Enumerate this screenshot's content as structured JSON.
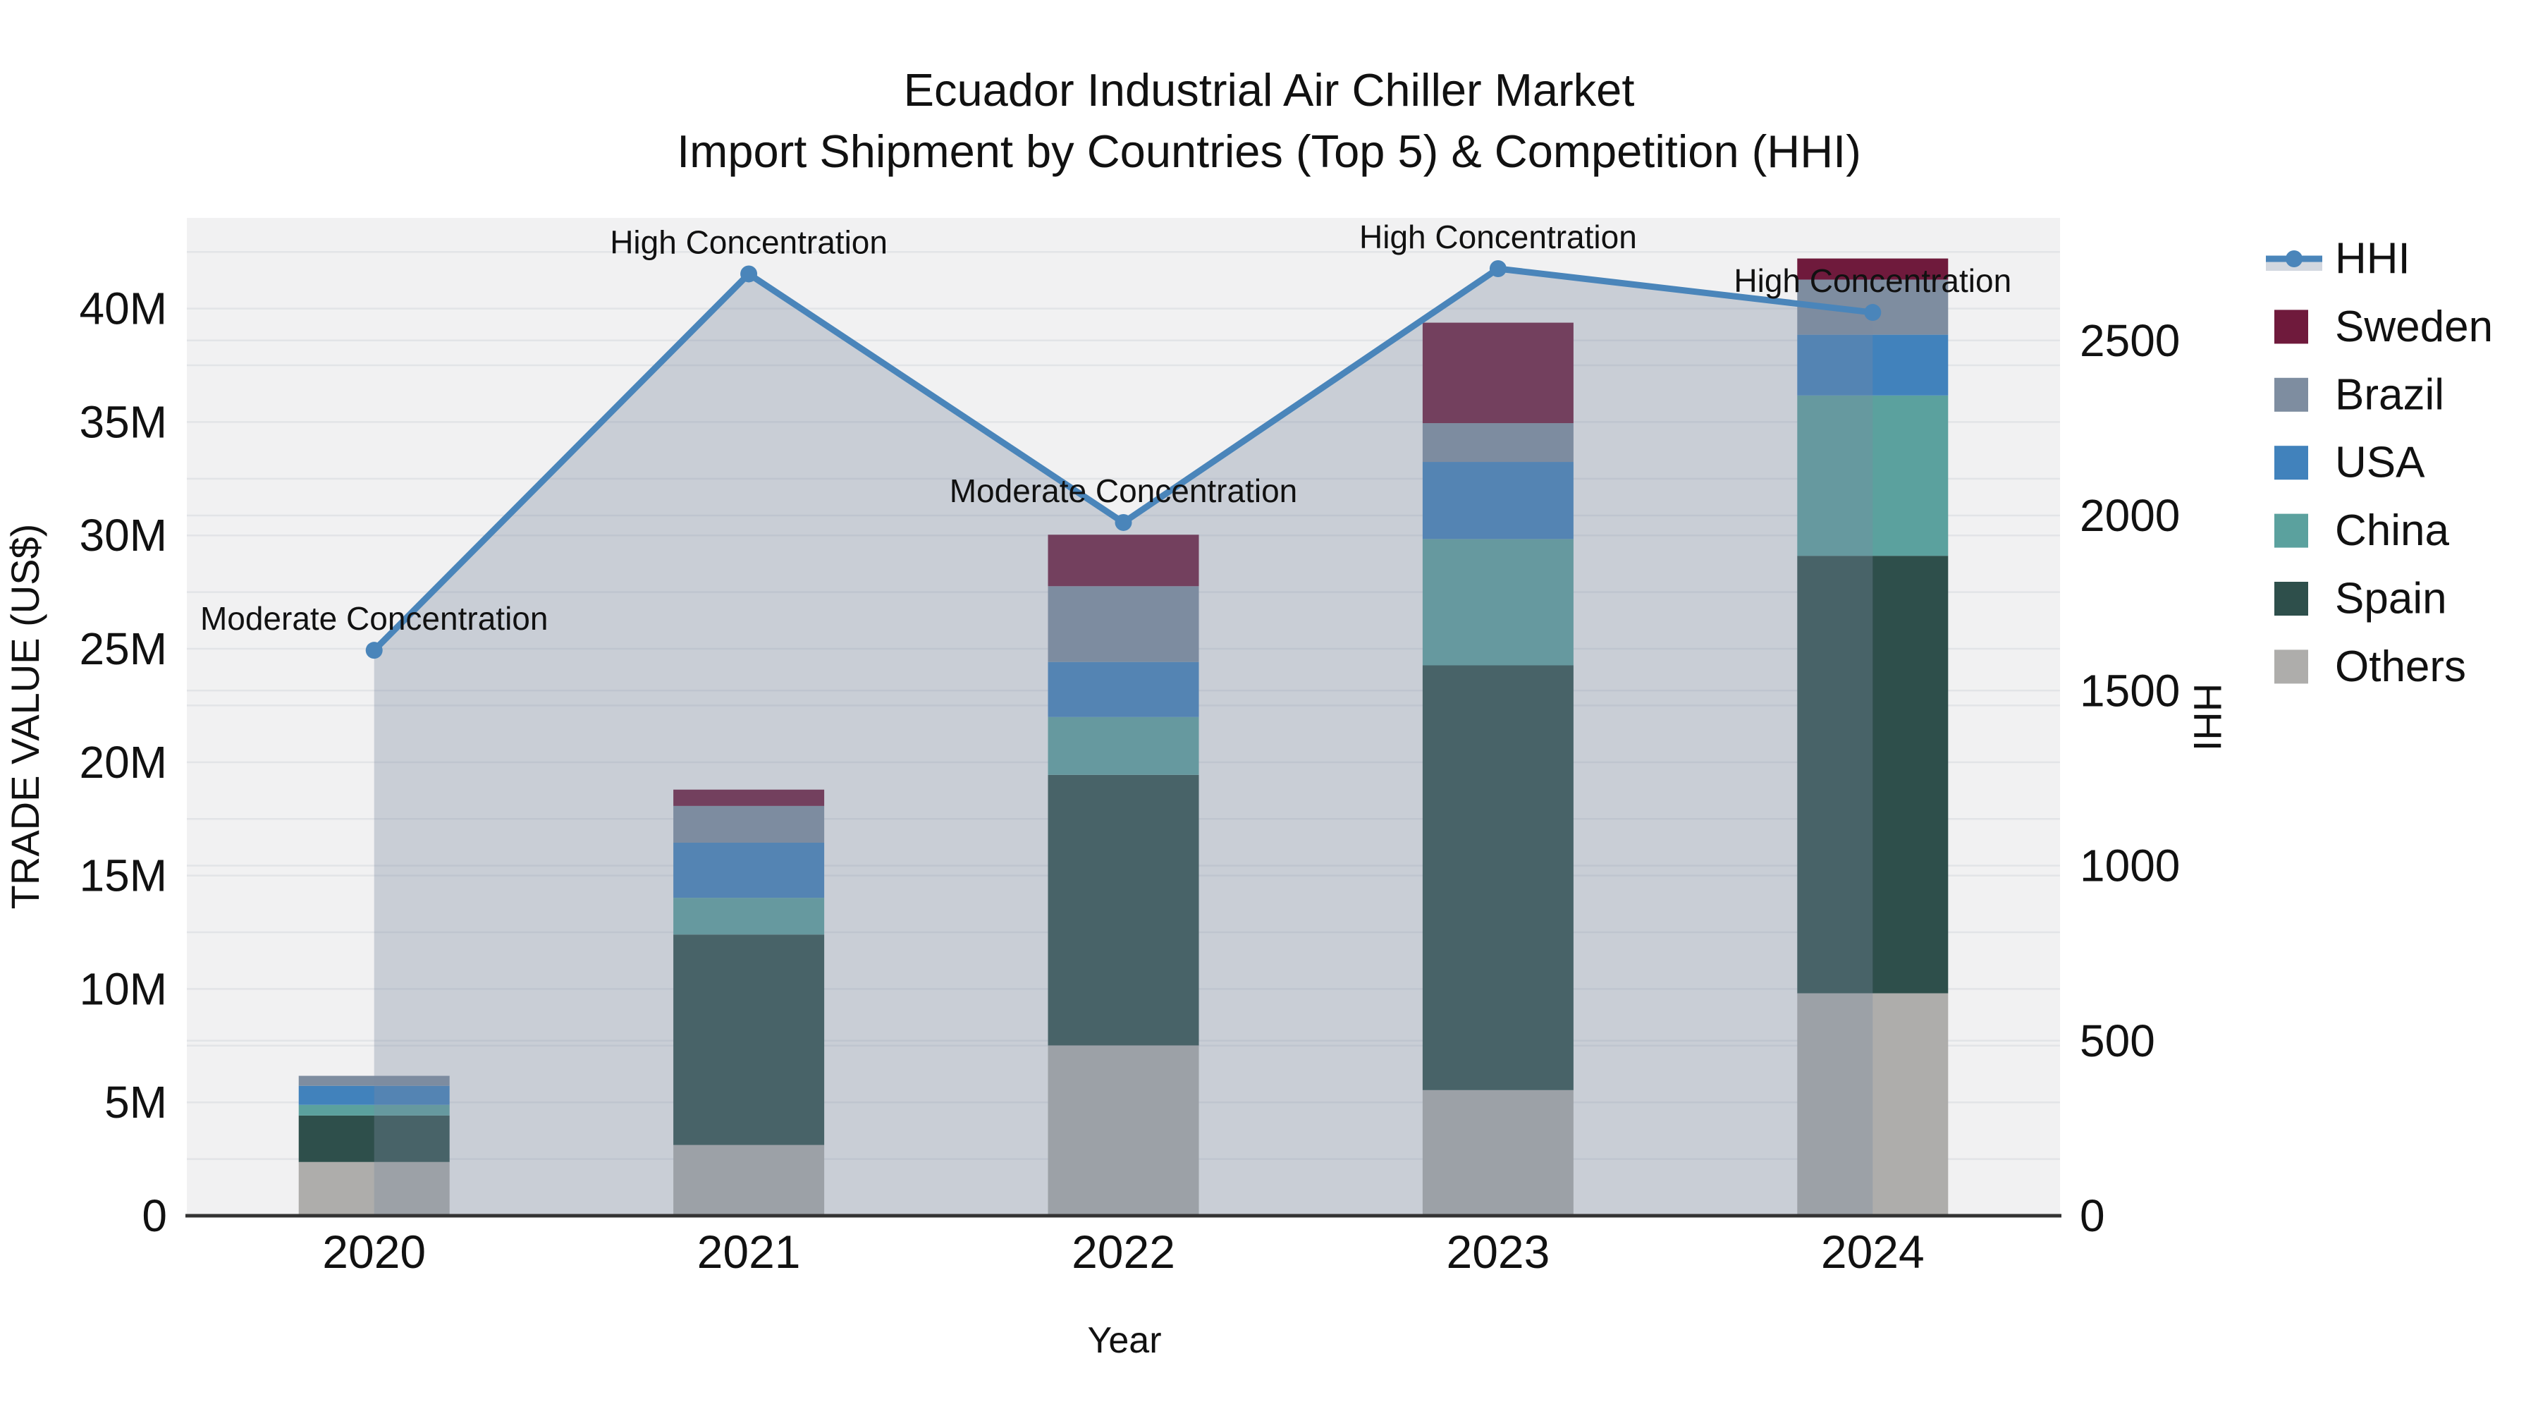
{
  "title": {
    "line1": "Ecuador Industrial Air Chiller Market",
    "line2": "Import Shipment by Countries (Top 5) & Competition (HHI)"
  },
  "axes": {
    "y_left_title": "TRADE VALUE (US$)",
    "y_right_title": "HHI",
    "x_title": "Year"
  },
  "legend": {
    "items": [
      {
        "label": "HHI",
        "type": "line",
        "series": "HHI"
      },
      {
        "label": "Sweden",
        "type": "swatch",
        "series": "Sweden"
      },
      {
        "label": "Brazil",
        "type": "swatch",
        "series": "Brazil"
      },
      {
        "label": "USA",
        "type": "swatch",
        "series": "USA"
      },
      {
        "label": "China",
        "type": "swatch",
        "series": "China"
      },
      {
        "label": "Spain",
        "type": "swatch",
        "series": "Spain"
      },
      {
        "label": "Others",
        "type": "swatch",
        "series": "Others"
      }
    ]
  },
  "chart_data": {
    "type": "bar",
    "subtype": "stacked-bars-with-line-area",
    "title": "Ecuador Industrial Air Chiller Market Import Shipment by Countries (Top 5) & Competition (HHI)",
    "xlabel": "Year",
    "ylabel_left": "TRADE VALUE (US$)",
    "ylabel_right": "HHI",
    "categories": [
      "2020",
      "2021",
      "2022",
      "2023",
      "2024"
    ],
    "value_unit": "million US$",
    "series": [
      {
        "name": "Others",
        "color": "#aeadab",
        "values": [
          2.37,
          3.12,
          7.51,
          5.54,
          9.81
        ]
      },
      {
        "name": "Spain",
        "color": "#2e4f4b",
        "values": [
          2.05,
          9.28,
          11.93,
          18.73,
          19.29
        ]
      },
      {
        "name": "China",
        "color": "#5ba19e",
        "values": [
          0.47,
          1.62,
          2.55,
          5.57,
          7.07
        ]
      },
      {
        "name": "USA",
        "color": "#4182bc",
        "values": [
          0.84,
          2.43,
          2.43,
          3.4,
          2.68
        ]
      },
      {
        "name": "Brazil",
        "color": "#7e8da0",
        "values": [
          0.44,
          1.62,
          3.34,
          1.71,
          2.43
        ]
      },
      {
        "name": "Sweden",
        "color": "#6f1a3c",
        "values": [
          0.0,
          0.72,
          2.27,
          4.43,
          0.93
        ]
      }
    ],
    "line_series": {
      "name": "HHI",
      "color": "#4a85ba",
      "area_fill": "rgba(122,137,160,0.34)",
      "values": [
        1615,
        2690,
        1980,
        2705,
        2580
      ]
    },
    "annotations": [
      "Moderate Concentration",
      "High Concentration",
      "Moderate Concentration",
      "High Concentration",
      "High Concentration"
    ],
    "ylim_left": [
      0,
      44
    ],
    "ylim_right": [
      0,
      2850
    ],
    "yticks_left": [
      0,
      5,
      10,
      15,
      20,
      25,
      30,
      35,
      40
    ],
    "ytick_left_suffix": "M",
    "yticks_right": [
      0,
      500,
      1000,
      1500,
      2000,
      2500
    ],
    "grid": {
      "on": true,
      "left_minor_step": 2.5,
      "right_step": 500,
      "color": "#e2e4e7"
    },
    "plot_bg": "#f1f1f2",
    "axis_line_color": "#333333",
    "legend_position": "right-outside"
  }
}
